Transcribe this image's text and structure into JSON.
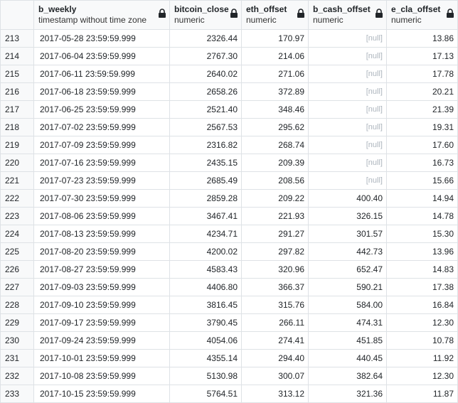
{
  "columns": [
    {
      "name": "b_weekly",
      "type": "timestamp without time zone"
    },
    {
      "name": "bitcoin_close",
      "type": "numeric"
    },
    {
      "name": "eth_offset",
      "type": "numeric"
    },
    {
      "name": "b_cash_offset",
      "type": "numeric"
    },
    {
      "name": "e_cla_offset",
      "type": "numeric"
    }
  ],
  "null_label": "[null]",
  "rows": [
    {
      "n": "213",
      "b_weekly": "2017-05-28 23:59:59.999",
      "bitcoin_close": "2326.44",
      "eth_offset": "170.97",
      "b_cash_offset": null,
      "e_cla_offset": "13.86"
    },
    {
      "n": "214",
      "b_weekly": "2017-06-04 23:59:59.999",
      "bitcoin_close": "2767.30",
      "eth_offset": "214.06",
      "b_cash_offset": null,
      "e_cla_offset": "17.13"
    },
    {
      "n": "215",
      "b_weekly": "2017-06-11 23:59:59.999",
      "bitcoin_close": "2640.02",
      "eth_offset": "271.06",
      "b_cash_offset": null,
      "e_cla_offset": "17.78"
    },
    {
      "n": "216",
      "b_weekly": "2017-06-18 23:59:59.999",
      "bitcoin_close": "2658.26",
      "eth_offset": "372.89",
      "b_cash_offset": null,
      "e_cla_offset": "20.21"
    },
    {
      "n": "217",
      "b_weekly": "2017-06-25 23:59:59.999",
      "bitcoin_close": "2521.40",
      "eth_offset": "348.46",
      "b_cash_offset": null,
      "e_cla_offset": "21.39"
    },
    {
      "n": "218",
      "b_weekly": "2017-07-02 23:59:59.999",
      "bitcoin_close": "2567.53",
      "eth_offset": "295.62",
      "b_cash_offset": null,
      "e_cla_offset": "19.31"
    },
    {
      "n": "219",
      "b_weekly": "2017-07-09 23:59:59.999",
      "bitcoin_close": "2316.82",
      "eth_offset": "268.74",
      "b_cash_offset": null,
      "e_cla_offset": "17.60"
    },
    {
      "n": "220",
      "b_weekly": "2017-07-16 23:59:59.999",
      "bitcoin_close": "2435.15",
      "eth_offset": "209.39",
      "b_cash_offset": null,
      "e_cla_offset": "16.73"
    },
    {
      "n": "221",
      "b_weekly": "2017-07-23 23:59:59.999",
      "bitcoin_close": "2685.49",
      "eth_offset": "208.56",
      "b_cash_offset": null,
      "e_cla_offset": "15.66"
    },
    {
      "n": "222",
      "b_weekly": "2017-07-30 23:59:59.999",
      "bitcoin_close": "2859.28",
      "eth_offset": "209.22",
      "b_cash_offset": "400.40",
      "e_cla_offset": "14.94"
    },
    {
      "n": "223",
      "b_weekly": "2017-08-06 23:59:59.999",
      "bitcoin_close": "3467.41",
      "eth_offset": "221.93",
      "b_cash_offset": "326.15",
      "e_cla_offset": "14.78"
    },
    {
      "n": "224",
      "b_weekly": "2017-08-13 23:59:59.999",
      "bitcoin_close": "4234.71",
      "eth_offset": "291.27",
      "b_cash_offset": "301.57",
      "e_cla_offset": "15.30"
    },
    {
      "n": "225",
      "b_weekly": "2017-08-20 23:59:59.999",
      "bitcoin_close": "4200.02",
      "eth_offset": "297.82",
      "b_cash_offset": "442.73",
      "e_cla_offset": "13.96"
    },
    {
      "n": "226",
      "b_weekly": "2017-08-27 23:59:59.999",
      "bitcoin_close": "4583.43",
      "eth_offset": "320.96",
      "b_cash_offset": "652.47",
      "e_cla_offset": "14.83"
    },
    {
      "n": "227",
      "b_weekly": "2017-09-03 23:59:59.999",
      "bitcoin_close": "4406.80",
      "eth_offset": "366.37",
      "b_cash_offset": "590.21",
      "e_cla_offset": "17.38"
    },
    {
      "n": "228",
      "b_weekly": "2017-09-10 23:59:59.999",
      "bitcoin_close": "3816.45",
      "eth_offset": "315.76",
      "b_cash_offset": "584.00",
      "e_cla_offset": "16.84"
    },
    {
      "n": "229",
      "b_weekly": "2017-09-17 23:59:59.999",
      "bitcoin_close": "3790.45",
      "eth_offset": "266.11",
      "b_cash_offset": "474.31",
      "e_cla_offset": "12.30"
    },
    {
      "n": "230",
      "b_weekly": "2017-09-24 23:59:59.999",
      "bitcoin_close": "4054.06",
      "eth_offset": "274.41",
      "b_cash_offset": "451.85",
      "e_cla_offset": "10.78"
    },
    {
      "n": "231",
      "b_weekly": "2017-10-01 23:59:59.999",
      "bitcoin_close": "4355.14",
      "eth_offset": "294.40",
      "b_cash_offset": "440.45",
      "e_cla_offset": "11.92"
    },
    {
      "n": "232",
      "b_weekly": "2017-10-08 23:59:59.999",
      "bitcoin_close": "5130.98",
      "eth_offset": "300.07",
      "b_cash_offset": "382.64",
      "e_cla_offset": "12.30"
    },
    {
      "n": "233",
      "b_weekly": "2017-10-15 23:59:59.999",
      "bitcoin_close": "5764.51",
      "eth_offset": "313.12",
      "b_cash_offset": "321.36",
      "e_cla_offset": "11.87"
    }
  ]
}
